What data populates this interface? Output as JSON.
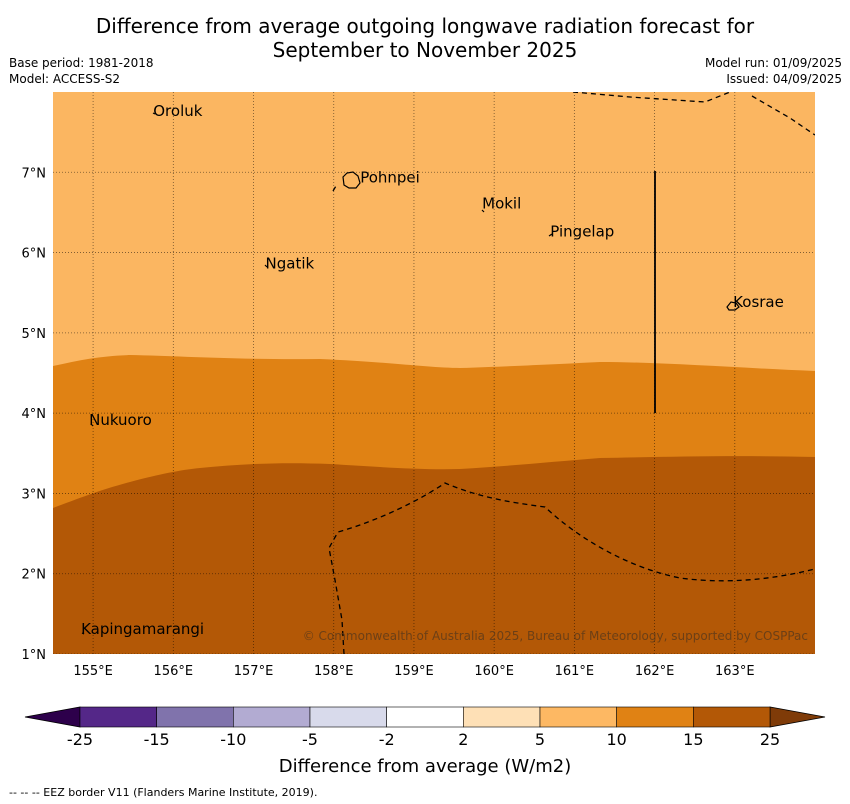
{
  "title_line1": "Difference from average outgoing longwave radiation forecast for",
  "title_line2": "September to November 2025",
  "base_period": "Base period: 1981-2018",
  "model": "Model: ACCESS-S2",
  "model_run": "Model run: 01/09/2025",
  "issued": "Issued: 04/09/2025",
  "copyright": "© Commonwealth of Australia 2025, Bureau of Meteorology, supported by COSPPac",
  "footer_note": "--  --  -- EEZ border V11 (Flanders Marine Institute, 2019).",
  "map": {
    "lon_range": [
      154.5,
      164.0
    ],
    "lat_range": [
      1.0,
      8.0
    ],
    "lon_ticks": [
      155,
      156,
      157,
      158,
      159,
      160,
      161,
      162,
      163
    ],
    "lon_tick_labels": [
      "155°E",
      "156°E",
      "157°E",
      "158°E",
      "159°E",
      "160°E",
      "161°E",
      "162°E",
      "163°E"
    ],
    "lat_ticks": [
      1,
      2,
      3,
      4,
      5,
      6,
      7
    ],
    "lat_tick_labels": [
      "1°N",
      "2°N",
      "3°N",
      "4°N",
      "5°N",
      "6°N",
      "7°N"
    ],
    "colors": {
      "band_5_10": "#fbb661",
      "band_10_15": "#e08214",
      "band_15_25": "#b35806"
    },
    "places": [
      {
        "name": "Oroluk",
        "lon": 155.75,
        "lat": 7.7
      },
      {
        "name": "Pohnpei",
        "lon": 158.33,
        "lat": 6.87
      },
      {
        "name": "Mokil",
        "lon": 159.85,
        "lat": 6.55
      },
      {
        "name": "Pingelap",
        "lon": 160.7,
        "lat": 6.2
      },
      {
        "name": "Ngatik",
        "lon": 157.15,
        "lat": 5.8
      },
      {
        "name": "Kosrae",
        "lon": 162.98,
        "lat": 5.32
      },
      {
        "name": "Nukuoro",
        "lon": 154.95,
        "lat": 3.85
      },
      {
        "name": "Kapingamarangi",
        "lon": 154.85,
        "lat": 1.25
      }
    ]
  },
  "colorbar": {
    "label": "Difference from average (W/m2)",
    "tick_labels": [
      "-25",
      "-15",
      "-10",
      "-5",
      "-2",
      "2",
      "5",
      "10",
      "15",
      "25"
    ],
    "colors": [
      "#542788",
      "#8073ac",
      "#b2abd2",
      "#d8daeb",
      "#ffffff",
      "#fee0b6",
      "#fdb863",
      "#e08214",
      "#b35806"
    ],
    "low_extend_color": "#2d004b",
    "high_extend_color": "#7f3b08"
  }
}
